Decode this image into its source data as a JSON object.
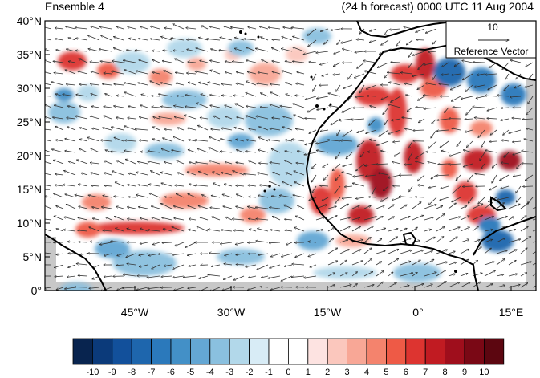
{
  "map": {
    "title_left": "Ensemble 4",
    "title_right": "(24 h forecast) 0000 UTC 11 Aug 2004",
    "lat_labels": [
      "40°N",
      "35°N",
      "30°N",
      "25°N",
      "20°N",
      "15°N",
      "10°N",
      "5°N",
      "0°"
    ],
    "lon_labels": [
      "45°W",
      "30°W",
      "15°W",
      "0°",
      "15°E"
    ],
    "reference_vector": {
      "magnitude_label": "10",
      "caption": "Reference Vector"
    },
    "colorbar": {
      "tick_labels": [
        "-10",
        "-9",
        "-8",
        "-7",
        "-6",
        "-5",
        "-4",
        "-3",
        "-2",
        "-1",
        "0",
        "1",
        "2",
        "3",
        "4",
        "5",
        "6",
        "7",
        "8",
        "9",
        "10"
      ],
      "colors": [
        "#08244f",
        "#0b3a7a",
        "#12509b",
        "#1e66ad",
        "#2b79bb",
        "#4390c7",
        "#64a7d4",
        "#8ac0df",
        "#b2d8ea",
        "#d8ecf6",
        "#ffffff",
        "#ffffff",
        "#fde3e1",
        "#fbc7bd",
        "#f8a796",
        "#f4836d",
        "#ee5a46",
        "#dd3430",
        "#c11b22",
        "#9f0e1c",
        "#7a0815",
        "#5c0610"
      ]
    },
    "colors": {
      "land_mask": "#c8c8c8",
      "coast": "#000000",
      "frame": "#000000"
    }
  }
}
